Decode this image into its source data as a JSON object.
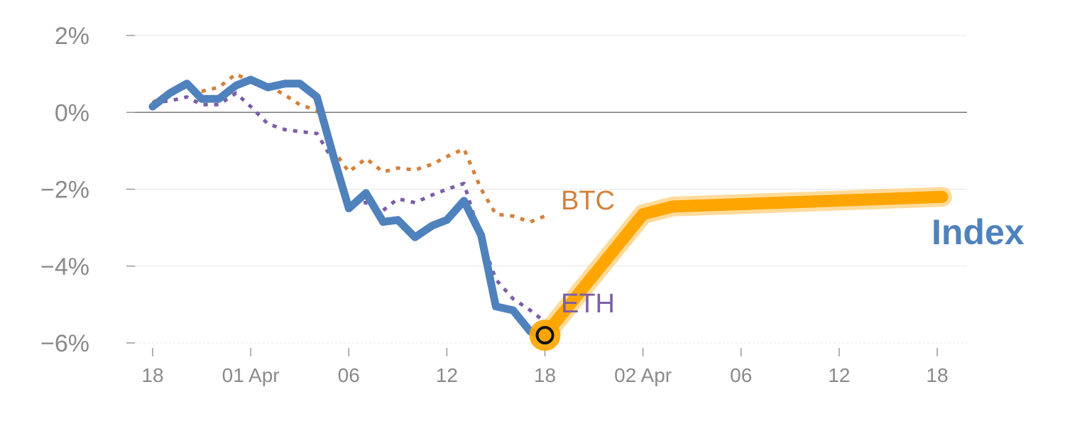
{
  "chart_data": {
    "type": "line",
    "title": "",
    "xlabel": "",
    "ylabel": "",
    "ylim": [
      -6,
      2
    ],
    "y_ticks": [
      {
        "value": 2,
        "label": "2%"
      },
      {
        "value": 0,
        "label": "0%"
      },
      {
        "value": -2,
        "label": "−2%"
      },
      {
        "value": -4,
        "label": "−4%"
      },
      {
        "value": -6,
        "label": "−6%"
      }
    ],
    "x_range": [
      -1,
      32
    ],
    "x_ticks": [
      {
        "value": 0,
        "label": "18"
      },
      {
        "value": 4,
        "label": "01 Apr"
      },
      {
        "value": 8,
        "label": "06"
      },
      {
        "value": 12,
        "label": "12"
      },
      {
        "value": 16,
        "label": "18"
      },
      {
        "value": 20,
        "label": "02 Apr"
      },
      {
        "value": 24,
        "label": "06"
      },
      {
        "value": 28,
        "label": "12"
      },
      {
        "value": 32,
        "label": "18"
      }
    ],
    "grid": true,
    "colors": {
      "index": "#4f81bd",
      "btc": "#d4803a",
      "eth": "#7b5ea7",
      "projection": "#ffa500",
      "projection_glow": "#ffd58a",
      "zero_line": "#777777",
      "grid": "#e6e6e6"
    },
    "series": [
      {
        "name": "Index",
        "style": "solid",
        "points": [
          [
            0,
            0.15
          ],
          [
            0.7,
            0.5
          ],
          [
            1.4,
            0.75
          ],
          [
            2,
            0.35
          ],
          [
            2.7,
            0.35
          ],
          [
            3.4,
            0.7
          ],
          [
            4,
            0.85
          ],
          [
            4.7,
            0.65
          ],
          [
            5.4,
            0.75
          ],
          [
            6,
            0.75
          ],
          [
            6.7,
            0.4
          ],
          [
            7.4,
            -1.2
          ],
          [
            8,
            -2.5
          ],
          [
            8.7,
            -2.1
          ],
          [
            9.4,
            -2.85
          ],
          [
            10,
            -2.8
          ],
          [
            10.7,
            -3.25
          ],
          [
            11.4,
            -2.95
          ],
          [
            12,
            -2.8
          ],
          [
            12.7,
            -2.3
          ],
          [
            13.4,
            -3.2
          ],
          [
            14,
            -5.05
          ],
          [
            14.7,
            -5.15
          ],
          [
            15.4,
            -5.7
          ],
          [
            16,
            -5.8
          ]
        ]
      },
      {
        "name": "BTC",
        "style": "dotted",
        "points": [
          [
            0,
            0.25
          ],
          [
            0.7,
            0.55
          ],
          [
            1.4,
            0.65
          ],
          [
            2,
            0.55
          ],
          [
            2.7,
            0.65
          ],
          [
            3.4,
            1.0
          ],
          [
            4,
            0.8
          ],
          [
            4.7,
            0.7
          ],
          [
            5.4,
            0.45
          ],
          [
            6,
            0.2
          ],
          [
            6.7,
            0.05
          ],
          [
            7.4,
            -1.0
          ],
          [
            8,
            -1.55
          ],
          [
            8.7,
            -1.2
          ],
          [
            9.4,
            -1.55
          ],
          [
            10,
            -1.45
          ],
          [
            10.7,
            -1.5
          ],
          [
            11.4,
            -1.35
          ],
          [
            12,
            -1.15
          ],
          [
            12.7,
            -0.95
          ],
          [
            13.4,
            -2.0
          ],
          [
            14,
            -2.65
          ],
          [
            14.7,
            -2.7
          ],
          [
            15.4,
            -2.85
          ],
          [
            16,
            -2.7
          ]
        ]
      },
      {
        "name": "ETH",
        "style": "dotted",
        "points": [
          [
            0,
            0.25
          ],
          [
            0.7,
            0.3
          ],
          [
            1.4,
            0.4
          ],
          [
            2,
            0.2
          ],
          [
            2.7,
            0.2
          ],
          [
            3.4,
            0.5
          ],
          [
            4,
            0.15
          ],
          [
            4.7,
            -0.3
          ],
          [
            5.4,
            -0.45
          ],
          [
            6,
            -0.5
          ],
          [
            6.7,
            -0.55
          ],
          [
            7.4,
            -1.3
          ],
          [
            8,
            -2.4
          ],
          [
            8.7,
            -2.35
          ],
          [
            9.4,
            -2.55
          ],
          [
            10,
            -2.25
          ],
          [
            10.7,
            -2.35
          ],
          [
            11.4,
            -2.15
          ],
          [
            12,
            -2.0
          ],
          [
            12.7,
            -1.85
          ],
          [
            13.4,
            -3.3
          ],
          [
            14,
            -4.35
          ],
          [
            14.7,
            -4.85
          ],
          [
            15.4,
            -5.15
          ],
          [
            16,
            -5.45
          ]
        ]
      },
      {
        "name": "",
        "style": "projection",
        "points": [
          [
            16,
            -5.8
          ],
          [
            20,
            -2.65
          ],
          [
            21.2,
            -2.45
          ],
          [
            32.2,
            -2.2
          ]
        ]
      }
    ],
    "labels": [
      {
        "text": "BTC",
        "series": "btc"
      },
      {
        "text": "ETH",
        "series": "eth"
      },
      {
        "text": "Index",
        "series": "index"
      }
    ],
    "marker": {
      "x": 16,
      "y": -5.8
    }
  }
}
